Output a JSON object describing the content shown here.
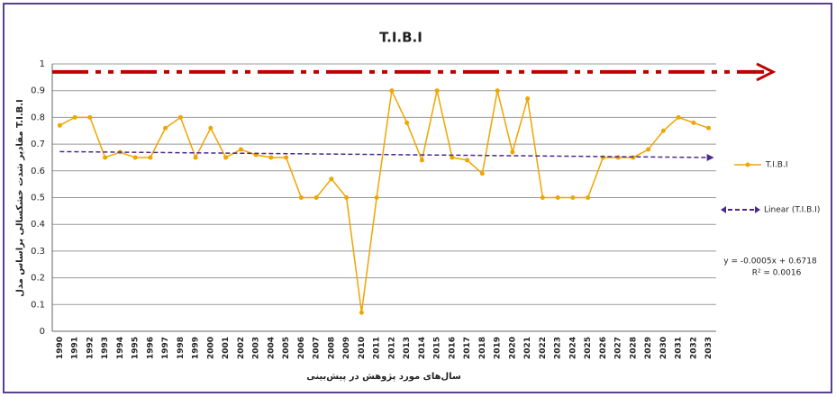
{
  "chart_data": {
    "type": "line",
    "title": "T.I.B.I",
    "x_label": "سال‌های مورد پژوهش در پیش‌بینی",
    "y_label": "مقادیر شدت خشکسالی براساس مدل T.I.B.I",
    "categories": [
      "1990",
      "1991",
      "1992",
      "1993",
      "1994",
      "1995",
      "1996",
      "1997",
      "1998",
      "1999",
      "2000",
      "2001",
      "2002",
      "2003",
      "2004",
      "2005",
      "2006",
      "2007",
      "2008",
      "2009",
      "2010",
      "2011",
      "2012",
      "2013",
      "2014",
      "2015",
      "2016",
      "2017",
      "2018",
      "2019",
      "2020",
      "2021",
      "2022",
      "2023",
      "2024",
      "2025",
      "2026",
      "2027",
      "2028",
      "2029",
      "2030",
      "2031",
      "2032",
      "2033"
    ],
    "series": [
      {
        "name": "T.I.B.I",
        "color": "#f0a500",
        "values": [
          0.77,
          0.8,
          0.8,
          0.65,
          0.67,
          0.65,
          0.65,
          0.76,
          0.8,
          0.65,
          0.76,
          0.65,
          0.68,
          0.66,
          0.65,
          0.65,
          0.5,
          0.5,
          0.57,
          0.5,
          0.07,
          0.5,
          0.9,
          0.78,
          0.64,
          0.9,
          0.65,
          0.64,
          0.59,
          0.9,
          0.67,
          0.87,
          0.5,
          0.5,
          0.5,
          0.5,
          0.65,
          0.65,
          0.65,
          0.68,
          0.75,
          0.8,
          0.78,
          0.76
        ]
      }
    ],
    "trendline": {
      "name": "Linear (T.I.B.I)",
      "color": "#4b2a8c",
      "values": [
        0.672,
        0.65
      ],
      "equation": "y = -0.0005x + 0.6718",
      "r_squared": "R² = 0.0016"
    },
    "reference_line": {
      "value": 0.97,
      "color": "#c00000"
    },
    "ylim": [
      0,
      1
    ],
    "yticks": [
      0,
      0.1,
      0.2,
      0.3,
      0.4,
      0.5,
      0.6,
      0.7,
      0.8,
      0.9,
      1
    ],
    "grid": true
  }
}
